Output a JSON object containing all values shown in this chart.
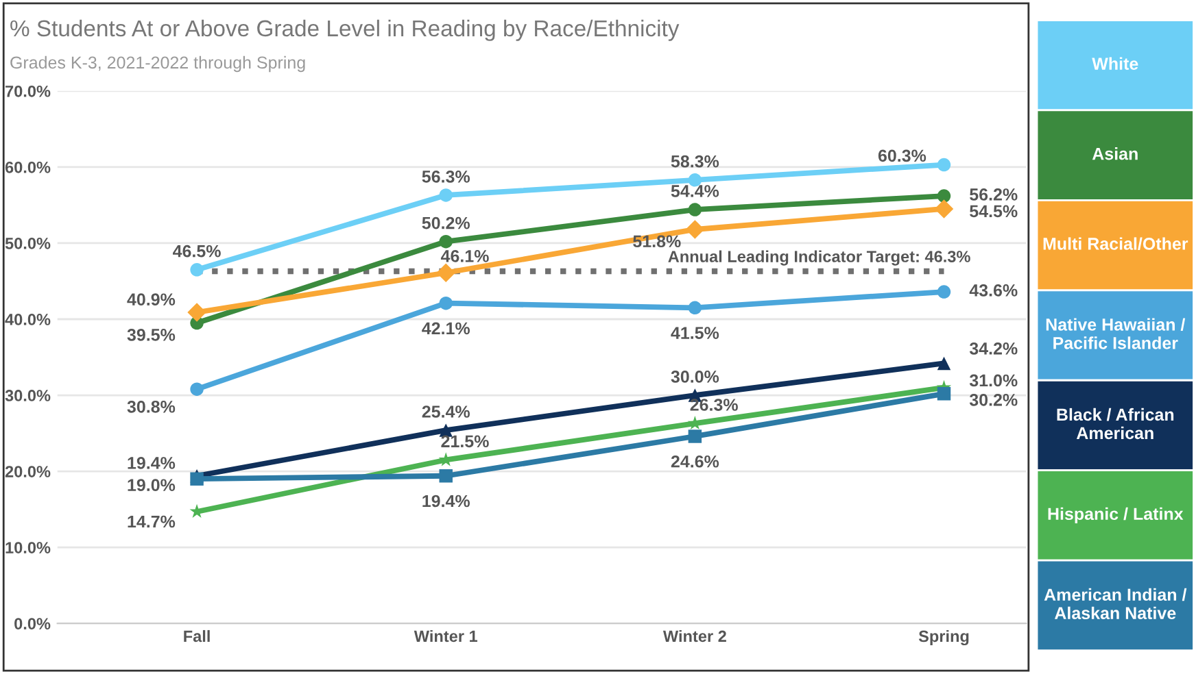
{
  "chart_data": {
    "type": "line",
    "title": "% Students At or Above Grade Level in Reading by Race/Ethnicity",
    "subtitle": "Grades K-3, 2021-2022 through Spring",
    "categories": [
      "Fall",
      "Winter 1",
      "Winter 2",
      "Spring"
    ],
    "series": [
      {
        "name": "White",
        "color": "#6ccff6",
        "marker": "circle",
        "values": [
          46.5,
          56.3,
          58.3,
          60.3
        ],
        "value_labels": [
          "46.5%",
          "56.3%",
          "58.3%",
          "60.3%"
        ]
      },
      {
        "name": "Asian",
        "color": "#3b8a3e",
        "marker": "circle",
        "values": [
          39.5,
          50.2,
          54.4,
          56.2
        ],
        "value_labels": [
          "39.5%",
          "50.2%",
          "54.4%",
          "56.2%"
        ]
      },
      {
        "name": "Multi Racial/Other",
        "color": "#f9a735",
        "marker": "diamond",
        "values": [
          40.9,
          46.1,
          51.8,
          54.5
        ],
        "value_labels": [
          "40.9%",
          "46.1%",
          "51.8%",
          "54.5%"
        ]
      },
      {
        "name": "Native Hawaiian / Pacific Islander",
        "color": "#4ba6db",
        "marker": "circle",
        "values": [
          30.8,
          42.1,
          41.5,
          43.6
        ],
        "value_labels": [
          "30.8%",
          "42.1%",
          "41.5%",
          "43.6%"
        ]
      },
      {
        "name": "Black / African American",
        "color": "#10305a",
        "marker": "triangle",
        "values": [
          19.4,
          25.4,
          30.0,
          34.2
        ],
        "value_labels": [
          "19.4%",
          "25.4%",
          "30.0%",
          "34.2%"
        ]
      },
      {
        "name": "Hispanic / Latinx",
        "color": "#4db352",
        "marker": "star",
        "values": [
          14.7,
          21.5,
          26.3,
          31.0
        ],
        "value_labels": [
          "14.7%",
          "21.5%",
          "26.3%",
          "31.0%"
        ]
      },
      {
        "name": "American Indian / Alaskan Native",
        "color": "#2c7aa5",
        "marker": "square",
        "values": [
          19.0,
          19.4,
          24.6,
          30.2
        ],
        "value_labels": [
          "19.0%",
          "19.4%",
          "24.6%",
          "30.2%"
        ]
      }
    ],
    "ylim": [
      0,
      70
    ],
    "yticks": [
      {
        "value": 0,
        "label": "0.0%"
      },
      {
        "value": 10,
        "label": "10.0%"
      },
      {
        "value": 20,
        "label": "20.0%"
      },
      {
        "value": 30,
        "label": "30.0%"
      },
      {
        "value": 40,
        "label": "40.0%"
      },
      {
        "value": 50,
        "label": "50.0%"
      },
      {
        "value": 60,
        "label": "60.0%"
      },
      {
        "value": 70,
        "label": "70.0%"
      }
    ],
    "ref_lines": [
      {
        "axis": "y",
        "value": 46.3,
        "label": "Annual Leading Indicator Target: 46.3%",
        "color": "#707070",
        "line_style": "dotted"
      }
    ],
    "grid": "y",
    "legend": "right",
    "line_style": "solid"
  }
}
